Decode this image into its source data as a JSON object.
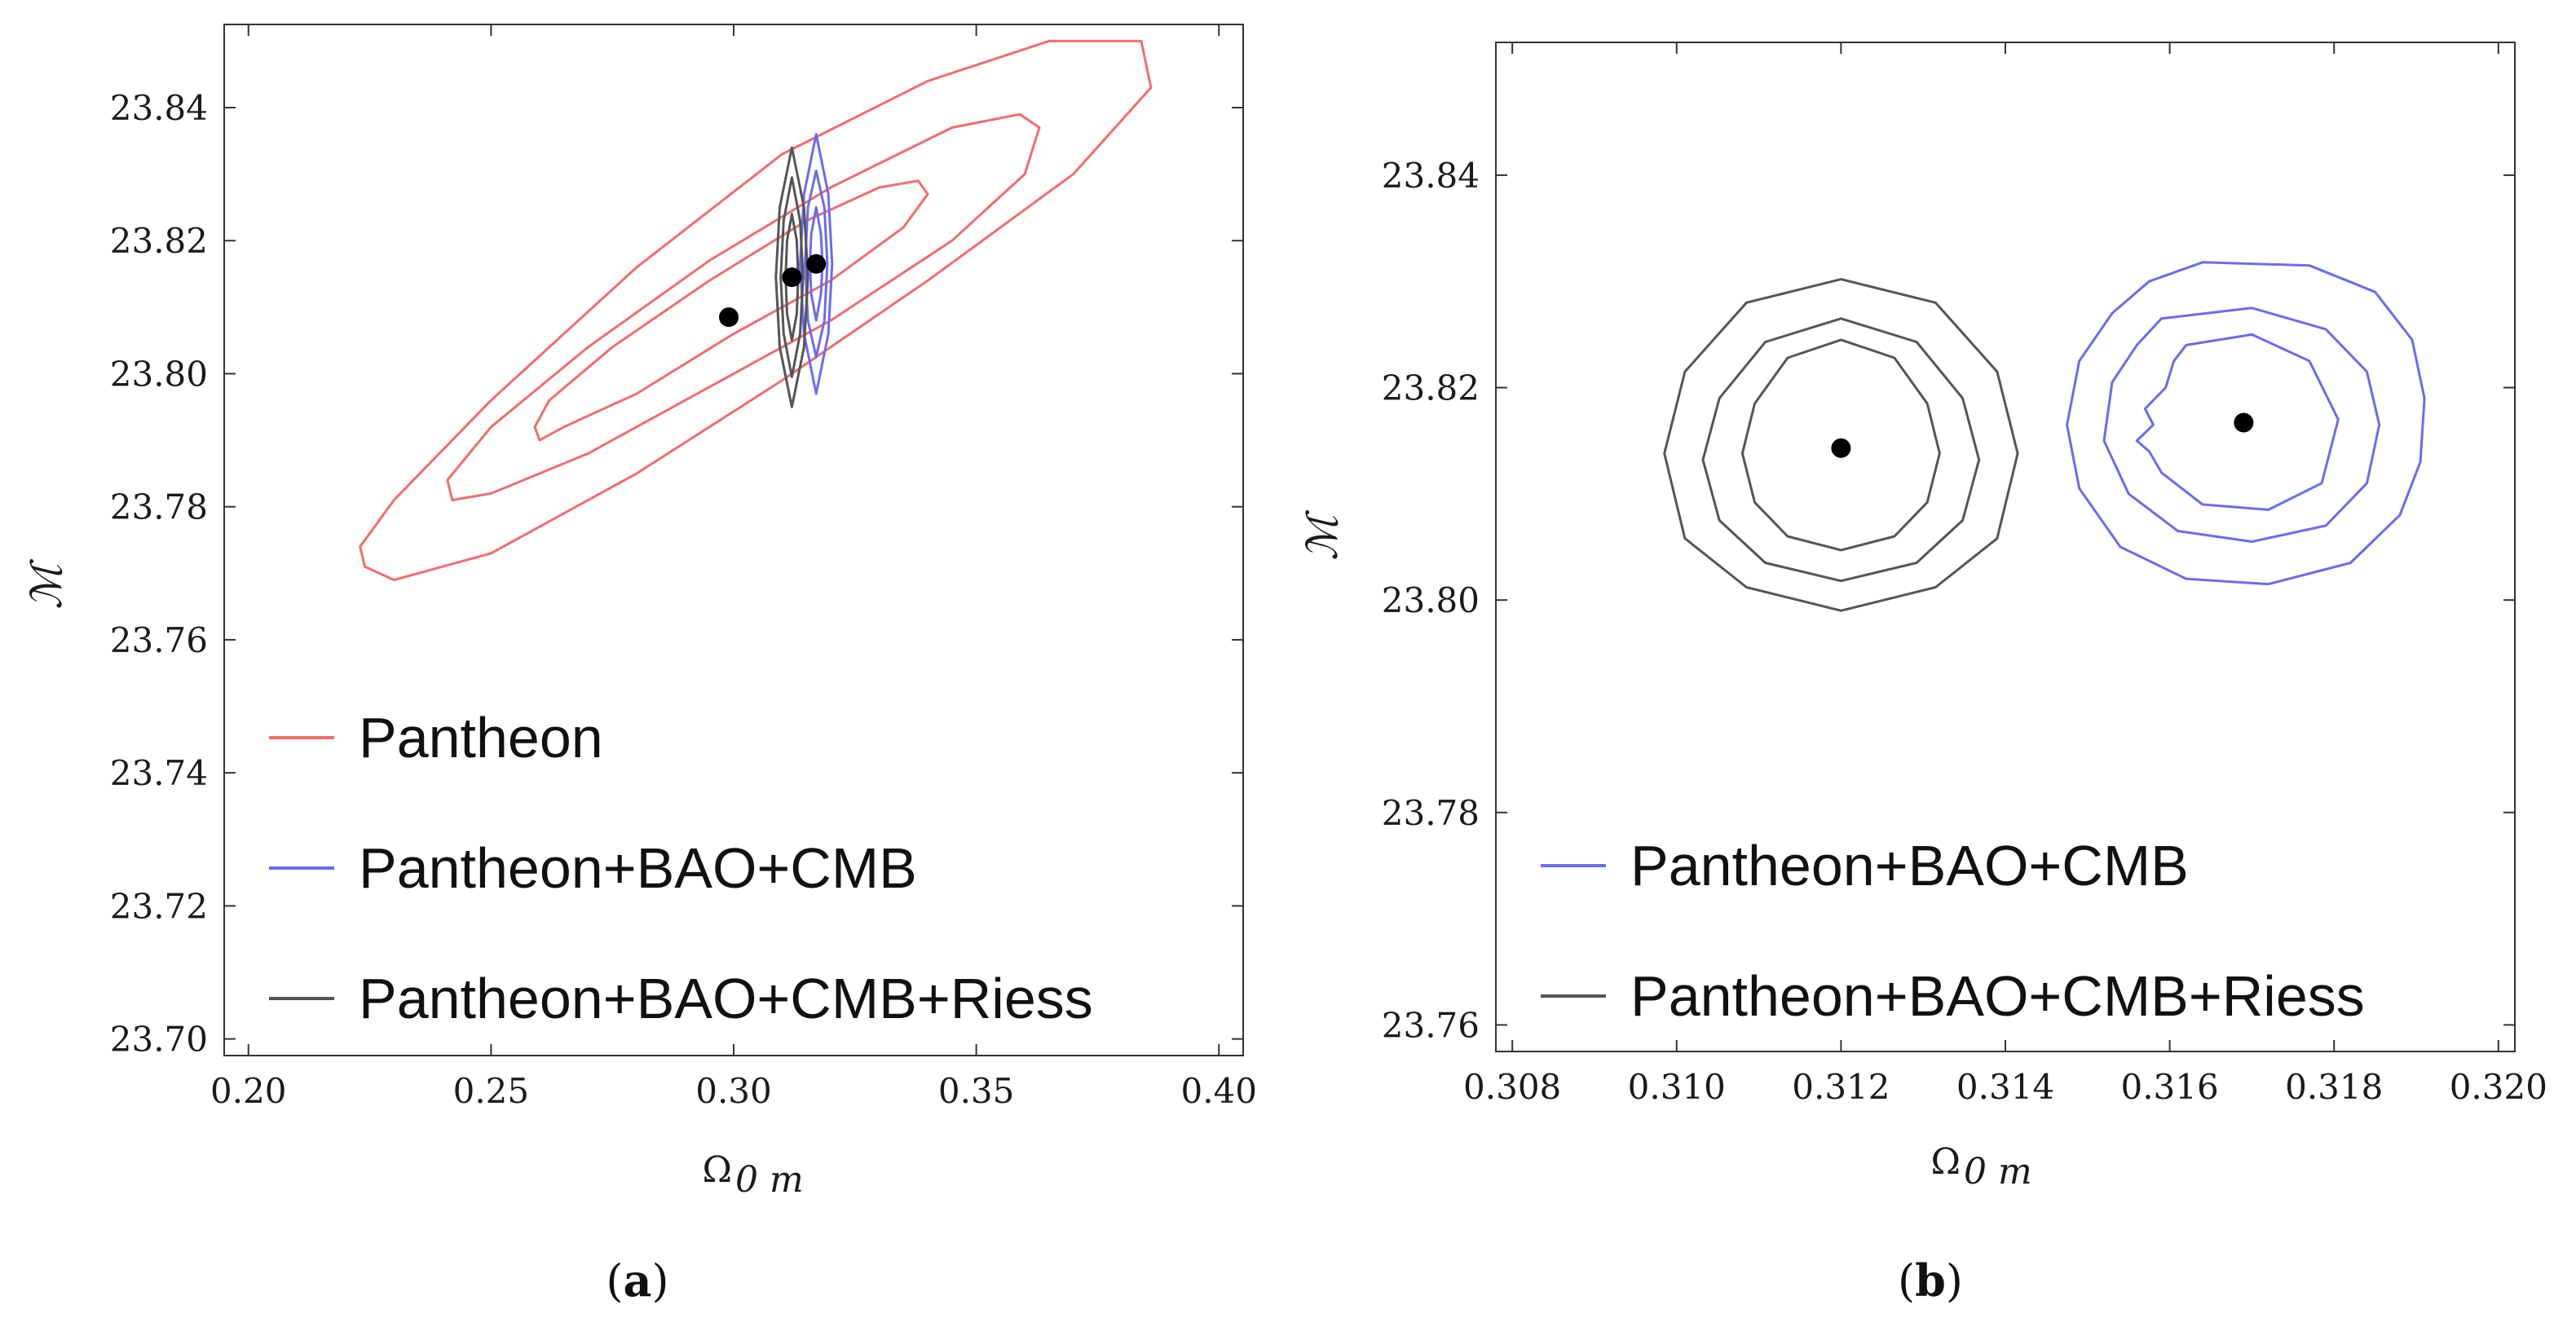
{
  "chart_data": [
    {
      "type": "contour",
      "panel_tag": "a",
      "xlabel": "Ω",
      "xlabel_sub": "0 m",
      "ylabel": "ℳ",
      "xlim": [
        0.195,
        0.405
      ],
      "ylim": [
        23.6975,
        23.8525
      ],
      "xticks": [
        "0.20",
        "0.25",
        "0.30",
        "0.35",
        "0.40"
      ],
      "yticks": [
        "23.70",
        "23.72",
        "23.74",
        "23.76",
        "23.78",
        "23.80",
        "23.82",
        "23.84"
      ],
      "legend": {
        "position": "bottom-left",
        "entries": [
          "Pantheon",
          "Pantheon+BAO+CMB",
          "Pantheon+BAO+CMB+Riess"
        ]
      },
      "series": [
        {
          "name": "Pantheon",
          "color": "#f26d6d",
          "best_fit": [
            0.299,
            23.8085
          ],
          "contours": [
            [
              [
                0.26,
                23.79
              ],
              [
                0.265,
                23.792
              ],
              [
                0.28,
                23.797
              ],
              [
                0.3,
                23.806
              ],
              [
                0.32,
                23.814
              ],
              [
                0.335,
                23.822
              ],
              [
                0.34,
                23.827
              ],
              [
                0.338,
                23.829
              ],
              [
                0.33,
                23.828
              ],
              [
                0.315,
                23.823
              ],
              [
                0.295,
                23.814
              ],
              [
                0.275,
                23.804
              ],
              [
                0.262,
                23.796
              ],
              [
                0.259,
                23.792
              ]
            ],
            [
              [
                0.242,
                23.781
              ],
              [
                0.25,
                23.782
              ],
              [
                0.27,
                23.788
              ],
              [
                0.295,
                23.798
              ],
              [
                0.32,
                23.808
              ],
              [
                0.345,
                23.82
              ],
              [
                0.36,
                23.83
              ],
              [
                0.363,
                23.837
              ],
              [
                0.359,
                23.839
              ],
              [
                0.345,
                23.837
              ],
              [
                0.32,
                23.828
              ],
              [
                0.295,
                23.817
              ],
              [
                0.27,
                23.804
              ],
              [
                0.25,
                23.792
              ],
              [
                0.241,
                23.784
              ]
            ],
            [
              [
                0.224,
                23.771
              ],
              [
                0.23,
                23.769
              ],
              [
                0.25,
                23.773
              ],
              [
                0.28,
                23.785
              ],
              [
                0.31,
                23.799
              ],
              [
                0.34,
                23.814
              ],
              [
                0.37,
                23.83
              ],
              [
                0.386,
                23.843
              ],
              [
                0.384,
                23.85
              ],
              [
                0.365,
                23.85
              ],
              [
                0.34,
                23.844
              ],
              [
                0.31,
                23.833
              ],
              [
                0.28,
                23.816
              ],
              [
                0.25,
                23.796
              ],
              [
                0.23,
                23.781
              ],
              [
                0.223,
                23.774
              ]
            ]
          ]
        },
        {
          "name": "Pantheon+BAO+CMB",
          "color": "#6b6bf0",
          "best_fit": [
            0.317,
            23.8165
          ],
          "contours": [
            [
              [
                0.317,
                23.808
              ],
              [
                0.318,
                23.812
              ],
              [
                0.3183,
                23.8165
              ],
              [
                0.318,
                23.821
              ],
              [
                0.317,
                23.825
              ],
              [
                0.316,
                23.821
              ],
              [
                0.3157,
                23.8165
              ],
              [
                0.316,
                23.812
              ]
            ],
            [
              [
                0.317,
                23.8025
              ],
              [
                0.3187,
                23.808
              ],
              [
                0.3193,
                23.8165
              ],
              [
                0.3187,
                23.825
              ],
              [
                0.317,
                23.8305
              ],
              [
                0.3153,
                23.825
              ],
              [
                0.3147,
                23.8165
              ],
              [
                0.3153,
                23.808
              ]
            ],
            [
              [
                0.317,
                23.797
              ],
              [
                0.3195,
                23.806
              ],
              [
                0.3203,
                23.8165
              ],
              [
                0.3195,
                23.827
              ],
              [
                0.317,
                23.836
              ],
              [
                0.3145,
                23.827
              ],
              [
                0.3137,
                23.8165
              ],
              [
                0.3145,
                23.806
              ]
            ]
          ]
        },
        {
          "name": "Pantheon+BAO+CMB+Riess",
          "color": "#555555",
          "best_fit": [
            0.312,
            23.8145
          ],
          "contours": [
            [
              [
                0.312,
                23.805
              ],
              [
                0.313,
                23.809
              ],
              [
                0.3133,
                23.8145
              ],
              [
                0.313,
                23.82
              ],
              [
                0.312,
                23.824
              ],
              [
                0.311,
                23.82
              ],
              [
                0.3107,
                23.8145
              ],
              [
                0.311,
                23.809
              ]
            ],
            [
              [
                0.312,
                23.7995
              ],
              [
                0.3137,
                23.806
              ],
              [
                0.3143,
                23.8145
              ],
              [
                0.3137,
                23.823
              ],
              [
                0.312,
                23.8295
              ],
              [
                0.3103,
                23.823
              ],
              [
                0.3097,
                23.8145
              ],
              [
                0.3103,
                23.806
              ]
            ],
            [
              [
                0.312,
                23.795
              ],
              [
                0.3145,
                23.804
              ],
              [
                0.3153,
                23.8145
              ],
              [
                0.3145,
                23.825
              ],
              [
                0.312,
                23.834
              ],
              [
                0.3095,
                23.825
              ],
              [
                0.3087,
                23.8145
              ],
              [
                0.3095,
                23.804
              ]
            ]
          ]
        }
      ]
    },
    {
      "type": "contour",
      "panel_tag": "b",
      "xlabel": "Ω",
      "xlabel_sub": "0 m",
      "ylabel": "ℳ",
      "xlim": [
        0.3078,
        0.3202
      ],
      "ylim": [
        23.7575,
        23.8525
      ],
      "xticks": [
        "0.308",
        "0.310",
        "0.312",
        "0.314",
        "0.316",
        "0.318",
        "0.320"
      ],
      "yticks": [
        "23.76",
        "23.78",
        "23.80",
        "23.82",
        "23.84"
      ],
      "legend": {
        "position": "bottom-left",
        "entries": [
          "Pantheon+BAO+CMB",
          "Pantheon+BAO+CMB+Riess"
        ]
      },
      "series": [
        {
          "name": "Pantheon+BAO+CMB",
          "color": "#6b6bf0",
          "best_fit": [
            0.3169,
            23.8167
          ],
          "contours": [
            [
              [
                0.3162,
                23.824
              ],
              [
                0.317,
                23.825
              ],
              [
                0.3177,
                23.8225
              ],
              [
                0.31805,
                23.817
              ],
              [
                0.31785,
                23.811
              ],
              [
                0.3172,
                23.8085
              ],
              [
                0.3164,
                23.809
              ],
              [
                0.3159,
                23.812
              ],
              [
                0.31575,
                23.814
              ],
              [
                0.3156,
                23.815
              ],
              [
                0.3158,
                23.8165
              ],
              [
                0.3157,
                23.818
              ],
              [
                0.31595,
                23.82
              ],
              [
                0.31605,
                23.8225
              ]
            ],
            [
              [
                0.3159,
                23.8265
              ],
              [
                0.317,
                23.8275
              ],
              [
                0.3179,
                23.8255
              ],
              [
                0.3184,
                23.8215
              ],
              [
                0.31855,
                23.8165
              ],
              [
                0.3184,
                23.811
              ],
              [
                0.3179,
                23.807
              ],
              [
                0.317,
                23.8055
              ],
              [
                0.3161,
                23.8065
              ],
              [
                0.3155,
                23.81
              ],
              [
                0.3152,
                23.815
              ],
              [
                0.3153,
                23.8205
              ],
              [
                0.3156,
                23.824
              ]
            ],
            [
              [
                0.3164,
                23.8318
              ],
              [
                0.3177,
                23.8315
              ],
              [
                0.3185,
                23.829
              ],
              [
                0.31895,
                23.8245
              ],
              [
                0.3191,
                23.819
              ],
              [
                0.31905,
                23.813
              ],
              [
                0.3188,
                23.808
              ],
              [
                0.3182,
                23.8035
              ],
              [
                0.3172,
                23.8015
              ],
              [
                0.3162,
                23.802
              ],
              [
                0.3154,
                23.805
              ],
              [
                0.3149,
                23.8105
              ],
              [
                0.31475,
                23.8165
              ],
              [
                0.3149,
                23.8225
              ],
              [
                0.3153,
                23.827
              ],
              [
                0.31575,
                23.83
              ]
            ]
          ]
        },
        {
          "name": "Pantheon+BAO+CMB+Riess",
          "color": "#555555",
          "best_fit": [
            0.312,
            23.8143
          ],
          "contours": [
            [
              [
                0.312,
                23.8245
              ],
              [
                0.31265,
                23.8228
              ],
              [
                0.31305,
                23.8185
              ],
              [
                0.3132,
                23.8138
              ],
              [
                0.31305,
                23.8092
              ],
              [
                0.31265,
                23.806
              ],
              [
                0.312,
                23.8047
              ],
              [
                0.31135,
                23.806
              ],
              [
                0.31095,
                23.8092
              ],
              [
                0.3108,
                23.8138
              ],
              [
                0.31095,
                23.8185
              ],
              [
                0.31135,
                23.8228
              ]
            ],
            [
              [
                0.312,
                23.8265
              ],
              [
                0.31292,
                23.8243
              ],
              [
                0.31348,
                23.819
              ],
              [
                0.31368,
                23.8132
              ],
              [
                0.31348,
                23.8075
              ],
              [
                0.31292,
                23.8035
              ],
              [
                0.312,
                23.8018
              ],
              [
                0.31108,
                23.8035
              ],
              [
                0.31052,
                23.8075
              ],
              [
                0.31032,
                23.8132
              ],
              [
                0.31052,
                23.819
              ],
              [
                0.31108,
                23.8243
              ]
            ],
            [
              [
                0.312,
                23.8302
              ],
              [
                0.31315,
                23.828
              ],
              [
                0.3139,
                23.8215
              ],
              [
                0.31415,
                23.8138
              ],
              [
                0.3139,
                23.8058
              ],
              [
                0.31315,
                23.8012
              ],
              [
                0.312,
                23.799
              ],
              [
                0.31085,
                23.8012
              ],
              [
                0.3101,
                23.8058
              ],
              [
                0.30985,
                23.8138
              ],
              [
                0.3101,
                23.8215
              ],
              [
                0.31085,
                23.828
              ]
            ]
          ]
        }
      ]
    }
  ]
}
